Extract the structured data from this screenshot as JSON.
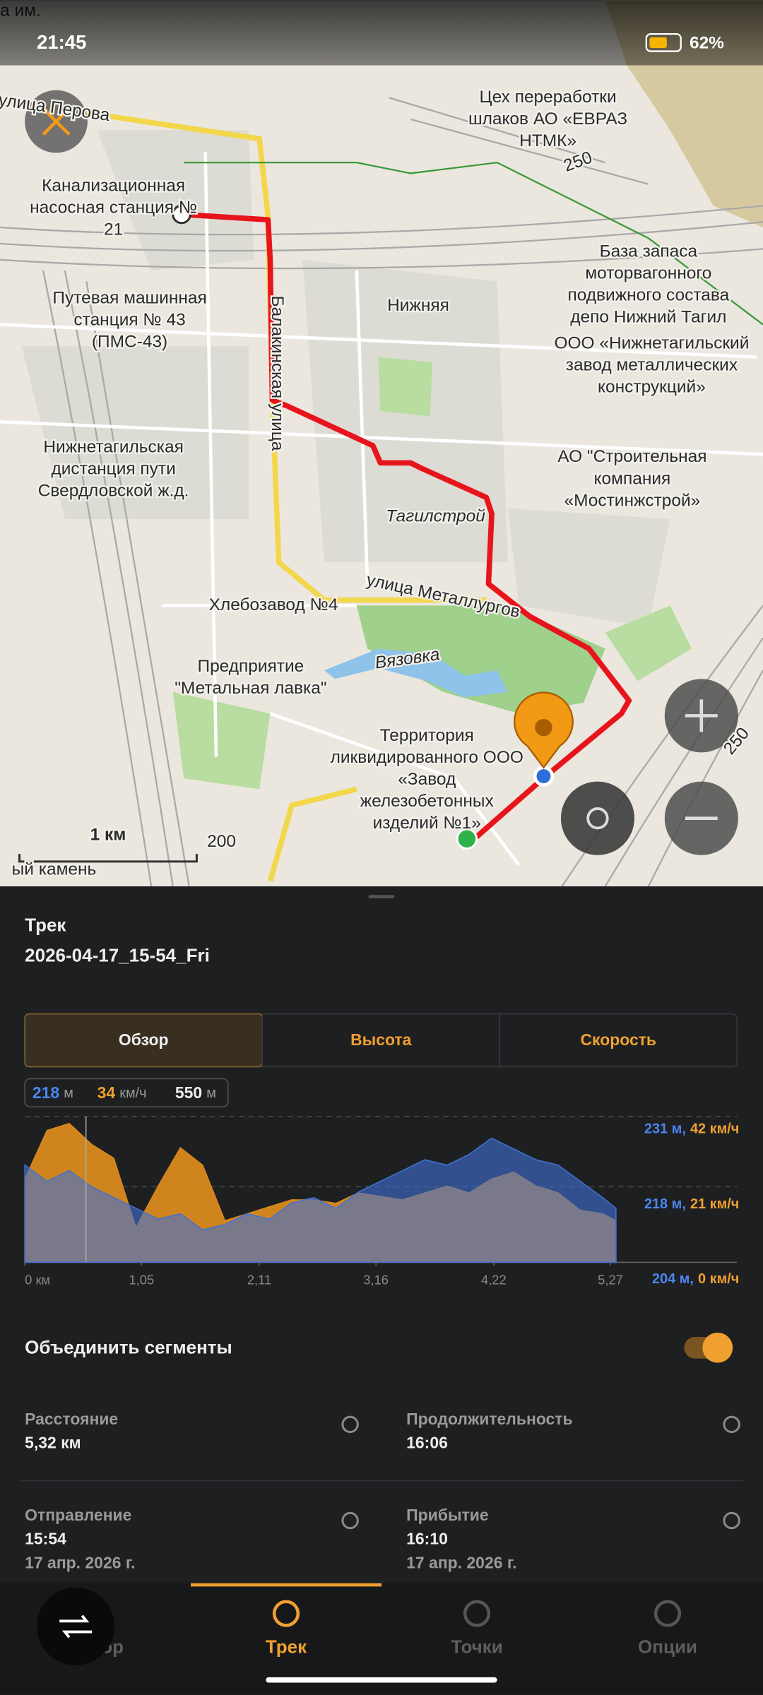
{
  "status_bar": {
    "time": "21:45",
    "battery": "62%"
  },
  "map": {
    "labels": [
      [
        "Цех переработки",
        "шлаков АО «ЕВРАЗ",
        "НТМК»"
      ],
      [
        "Канализационная",
        "насосная станция №",
        "21"
      ],
      [
        "База запаса",
        "моторвагонного",
        "подвижного состава",
        "депо Нижний Тагил"
      ],
      [
        "Нижняя"
      ],
      [
        "Путевая машинная",
        "станция № 43",
        "(ПМС-43)"
      ],
      [
        "ООО «Нижнетагильский",
        "завод металлических",
        "конструкций»"
      ],
      [
        "Нижнетагильская",
        "дистанция пути",
        "Свердловской ж.д."
      ],
      [
        "АО \"Строительная",
        "компания",
        "«Мостинжстрой»"
      ],
      [
        "Тагилстрой"
      ],
      [
        "Хлебозавод №4"
      ],
      [
        "Предприятие",
        "\"Метальная лавка\""
      ],
      [
        "Территория",
        "ликвидированного ООО",
        "«Завод",
        "железобетонных",
        "изделий №1»"
      ]
    ],
    "streets": [
      "улица Перова",
      "Балакинская улица",
      "улица Металлургов",
      "Вязовка"
    ],
    "edge_labels": [
      "удника им.",
      "ый камень"
    ],
    "scale": "1 км",
    "contours": [
      "200",
      "250",
      "250"
    ]
  },
  "track": {
    "heading": "Трек",
    "name": "2026-04-17_15-54_Fri"
  },
  "tabs": [
    "Обзор",
    "Высота",
    "Скорость"
  ],
  "active_tab": 0,
  "cursor": {
    "altitude": 218,
    "altitude_unit": "м",
    "speed": 34,
    "speed_unit": "км/ч",
    "distance": 550,
    "distance_unit": "м"
  },
  "chart_data": {
    "type": "area",
    "x": [
      0,
      0.2,
      0.4,
      0.6,
      0.8,
      1,
      1.2,
      1.4,
      1.6,
      1.8,
      2,
      2.2,
      2.4,
      2.6,
      2.8,
      3,
      3.2,
      3.4,
      3.6,
      3.8,
      4,
      4.2,
      4.4,
      4.6,
      4.8,
      5,
      5.2,
      5.32
    ],
    "series": [
      {
        "color": "#d98a1e",
        "axis": "y2",
        "values": [
          24,
          38,
          40,
          34,
          30,
          10,
          22,
          33,
          28,
          12,
          14,
          16,
          18,
          18,
          17,
          20,
          19,
          18,
          20,
          22,
          20,
          24,
          26,
          22,
          20,
          15,
          14,
          12
        ]
      },
      {
        "color": "#3f72d6",
        "values": [
          222,
          219,
          221,
          218,
          216,
          214,
          212,
          213,
          210,
          211,
          213,
          212,
          215,
          216,
          214,
          217,
          219,
          221,
          223,
          222,
          224,
          227,
          225,
          223,
          222,
          219,
          216,
          214
        ]
      }
    ],
    "xlim": [
      0,
      6.41
    ],
    "ylim": [
      204,
      231
    ],
    "y2lim": [
      0,
      42
    ],
    "xticks": [
      {
        "value": 0,
        "label": "0 км"
      },
      {
        "value": 1.05,
        "label": "1,05"
      },
      {
        "value": 2.11,
        "label": "2,11"
      },
      {
        "value": 3.16,
        "label": "3,16"
      },
      {
        "value": 4.22,
        "label": "4,22"
      },
      {
        "value": 5.27,
        "label": "5,27"
      }
    ],
    "yticks": [
      {
        "value": 231,
        "label": "231 м,"
      },
      {
        "value": 218,
        "label": "218 м,"
      },
      {
        "value": 204,
        "label": "204 м,"
      }
    ],
    "y2ticks": [
      {
        "value": 42,
        "label": "42 км/ч"
      },
      {
        "value": 21,
        "label": "21 км/ч"
      },
      {
        "value": 0,
        "label": "0 км/ч"
      }
    ],
    "cursor_x": 0.55
  },
  "merge": {
    "label": "Объединить сегменты",
    "enabled": true
  },
  "stats": [
    {
      "label": "Расстояние",
      "value": "5,32 км"
    },
    {
      "label": "Продолжительность",
      "value": "16:06"
    },
    {
      "label": "Отправление",
      "value": "15:54",
      "date": "17 апр. 2026 г."
    },
    {
      "label": "Прибытие",
      "value": "16:10",
      "date": "17 апр. 2026 г."
    }
  ],
  "nav": [
    "Обзор",
    "Трек",
    "Точки",
    "Опции"
  ],
  "active_nav": 1
}
